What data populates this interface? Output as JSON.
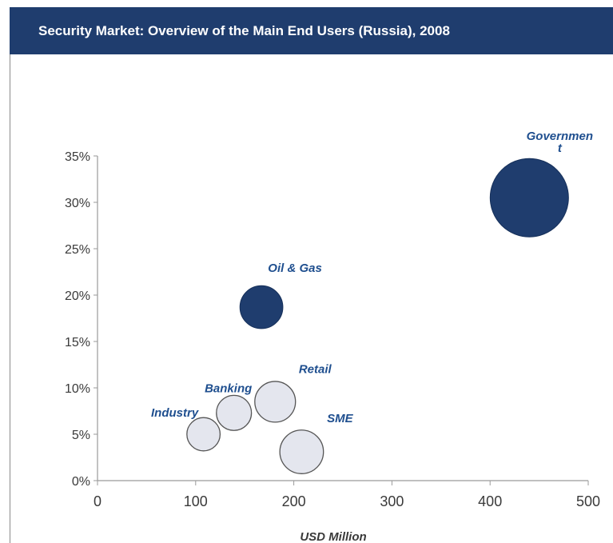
{
  "chart_data": {
    "type": "bubble",
    "title": "Security Market: Overview of the Main End Users (Russia), 2008",
    "xlabel": "USD Million",
    "ylabel": "",
    "xlim": [
      0,
      500
    ],
    "ylim": [
      0,
      35
    ],
    "xticks": [
      "0",
      "100",
      "200",
      "300",
      "400",
      "500"
    ],
    "yticks": [
      "0%",
      "5%",
      "10%",
      "15%",
      "20%",
      "25%",
      "30%",
      "35%"
    ],
    "grid": false,
    "colors": {
      "dark": "#1f3d6e",
      "light": "#e4e6ee",
      "label": "#1f4f8f"
    },
    "points": [
      {
        "name": "Government",
        "label_lines": [
          "Governmen",
          "t"
        ],
        "x": 440,
        "y": 30.5,
        "size": 100,
        "style": "dark"
      },
      {
        "name": "Oil & Gas",
        "label_lines": [
          "Oil & Gas"
        ],
        "x": 167,
        "y": 18.7,
        "size": 30,
        "style": "dark"
      },
      {
        "name": "Retail",
        "label_lines": [
          "Retail"
        ],
        "x": 181,
        "y": 8.5,
        "size": 27,
        "style": "light"
      },
      {
        "name": "Banking",
        "label_lines": [
          "Banking"
        ],
        "x": 139,
        "y": 7.3,
        "size": 20,
        "style": "light"
      },
      {
        "name": "Industry",
        "label_lines": [
          "Industry"
        ],
        "x": 108,
        "y": 5.0,
        "size": 18,
        "style": "light"
      },
      {
        "name": "SME",
        "label_lines": [
          "SME"
        ],
        "x": 208,
        "y": 3.1,
        "size": 31,
        "style": "light"
      }
    ]
  }
}
